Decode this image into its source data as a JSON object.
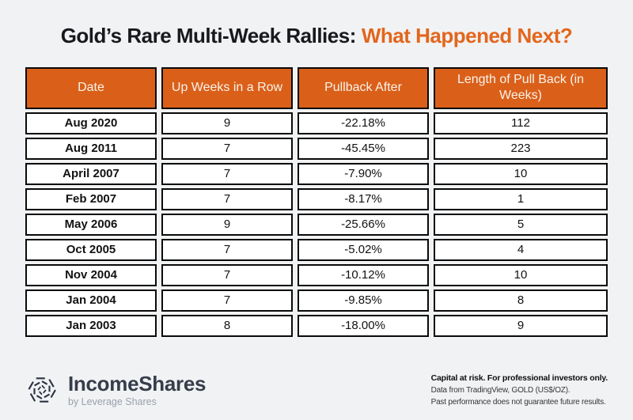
{
  "title": {
    "main": "Gold’s Rare Multi-Week Rallies:",
    "accent": "What Happened Next?"
  },
  "colors": {
    "background": "#f1f2f4",
    "header_orange": "#da601a",
    "title_orange": "#e2661c",
    "cell_border": "#0a0a0a",
    "brand_navy": "#2b3240"
  },
  "table": {
    "columns": [
      "Date",
      "Up Weeks in a Row",
      "Pullback After",
      "Length of Pull Back (in Weeks)"
    ],
    "rows": [
      [
        "Aug 2020",
        "9",
        "-22.18%",
        "112"
      ],
      [
        "Aug 2011",
        "7",
        "-45.45%",
        "223"
      ],
      [
        "April 2007",
        "7",
        "-7.90%",
        "10"
      ],
      [
        "Feb 2007",
        "7",
        "-8.17%",
        "1"
      ],
      [
        "May 2006",
        "9",
        "-25.66%",
        "5"
      ],
      [
        "Oct 2005",
        "7",
        "-5.02%",
        "4"
      ],
      [
        "Nov 2004",
        "7",
        "-10.12%",
        "10"
      ],
      [
        "Jan 2004",
        "7",
        "-9.85%",
        "8"
      ],
      [
        "Jan 2003",
        "8",
        "-18.00%",
        "9"
      ]
    ]
  },
  "footer": {
    "brand": "IncomeShares",
    "brand_sub": "by Leverage Shares",
    "disclaimer_bold": "Capital at risk. For professional investors only.",
    "disclaimer_line2": "Data from TradingView, GOLD (US$/OZ).",
    "disclaimer_line3": "Past performance does not guarantee future results."
  },
  "chart_data": {
    "type": "table",
    "title": "Gold’s Rare Multi-Week Rallies: What Happened Next?",
    "columns": [
      "Date",
      "Up Weeks in a Row",
      "Pullback After",
      "Length of Pull Back (in Weeks)"
    ],
    "rows": [
      {
        "date": "Aug 2020",
        "up_weeks_in_a_row": 9,
        "pullback_after_pct": -22.18,
        "pullback_length_weeks": 112
      },
      {
        "date": "Aug 2011",
        "up_weeks_in_a_row": 7,
        "pullback_after_pct": -45.45,
        "pullback_length_weeks": 223
      },
      {
        "date": "April 2007",
        "up_weeks_in_a_row": 7,
        "pullback_after_pct": -7.9,
        "pullback_length_weeks": 10
      },
      {
        "date": "Feb 2007",
        "up_weeks_in_a_row": 7,
        "pullback_after_pct": -8.17,
        "pullback_length_weeks": 1
      },
      {
        "date": "May 2006",
        "up_weeks_in_a_row": 9,
        "pullback_after_pct": -25.66,
        "pullback_length_weeks": 5
      },
      {
        "date": "Oct 2005",
        "up_weeks_in_a_row": 7,
        "pullback_after_pct": -5.02,
        "pullback_length_weeks": 4
      },
      {
        "date": "Nov 2004",
        "up_weeks_in_a_row": 7,
        "pullback_after_pct": -10.12,
        "pullback_length_weeks": 10
      },
      {
        "date": "Jan 2004",
        "up_weeks_in_a_row": 7,
        "pullback_after_pct": -9.85,
        "pullback_length_weeks": 8
      },
      {
        "date": "Jan 2003",
        "up_weeks_in_a_row": 8,
        "pullback_after_pct": -18.0,
        "pullback_length_weeks": 9
      }
    ]
  }
}
